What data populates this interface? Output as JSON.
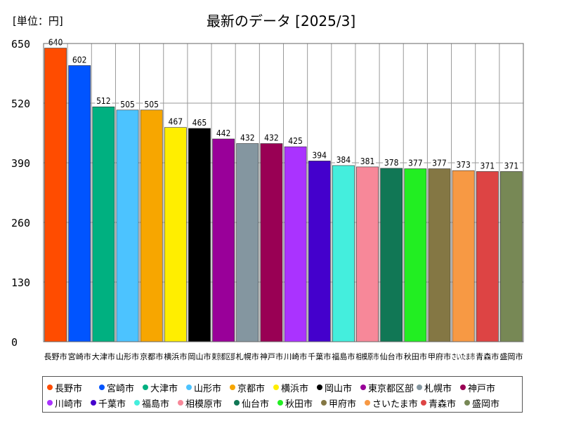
{
  "unit_label": "[単位：円]",
  "chart_data": {
    "type": "bar",
    "title": "最新のデータ [2025/3]",
    "xlabel": "",
    "ylabel": "",
    "ylim": [
      0,
      650
    ],
    "yticks": [
      0,
      130,
      260,
      390,
      520,
      650
    ],
    "grid": true,
    "legend_position": "bottom",
    "categories": [
      "長野市",
      "宮崎市",
      "大津市",
      "山形市",
      "京都市",
      "横浜市",
      "岡山市",
      "東京都区部",
      "札幌市",
      "神戸市",
      "川崎市",
      "千葉市",
      "福島市",
      "相模原市",
      "仙台市",
      "秋田市",
      "甲府市",
      "さいたま市",
      "青森市",
      "盛岡市"
    ],
    "values": [
      640,
      602,
      512,
      505,
      505,
      467,
      465,
      442,
      432,
      432,
      425,
      394,
      384,
      381,
      378,
      377,
      377,
      373,
      371,
      371
    ],
    "colors": [
      "#ff4c00",
      "#0054ff",
      "#00b080",
      "#4cc3ff",
      "#f7a600",
      "#ffee00",
      "#000000",
      "#990099",
      "#8496a0",
      "#990054",
      "#aa33ff",
      "#4400cc",
      "#44eedd",
      "#f78899",
      "#117755",
      "#22ee22",
      "#847744",
      "#f79944",
      "#dd4444",
      "#778855"
    ]
  }
}
